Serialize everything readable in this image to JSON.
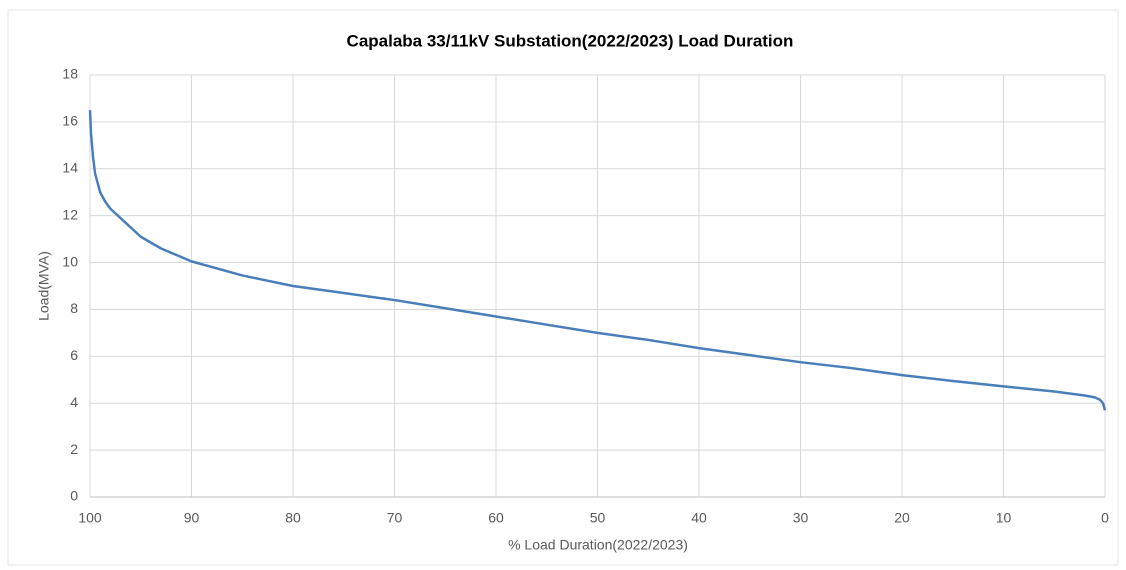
{
  "chart_data": {
    "type": "line",
    "title": "Capalaba 33/11kV Substation(2022/2023) Load Duration",
    "xlabel": "% Load Duration(2022/2023)",
    "ylabel": "Load(MVA)",
    "x": [
      100,
      99.9,
      99.7,
      99.5,
      99,
      98.5,
      98,
      97,
      96,
      95,
      93,
      90,
      85,
      80,
      75,
      70,
      65,
      60,
      55,
      50,
      45,
      40,
      35,
      30,
      25,
      20,
      15,
      10,
      5,
      2,
      1,
      0.5,
      0.2,
      0
    ],
    "series": [
      {
        "name": "Load",
        "color": "#4a7ebb",
        "values": [
          16.5,
          15.5,
          14.5,
          13.8,
          13.0,
          12.6,
          12.3,
          11.9,
          11.5,
          11.1,
          10.6,
          10.05,
          9.45,
          9.0,
          8.7,
          8.4,
          8.05,
          7.7,
          7.35,
          7.0,
          6.7,
          6.35,
          6.05,
          5.75,
          5.5,
          5.2,
          4.95,
          4.72,
          4.5,
          4.33,
          4.25,
          4.15,
          4.0,
          3.7
        ]
      }
    ],
    "xlim": [
      100,
      0
    ],
    "xticks": [
      100,
      90,
      80,
      70,
      60,
      50,
      40,
      30,
      20,
      10,
      0
    ],
    "ylim": [
      0,
      18
    ],
    "yticks": [
      0,
      2,
      4,
      6,
      8,
      10,
      12,
      14,
      16,
      18
    ],
    "grid": true
  }
}
